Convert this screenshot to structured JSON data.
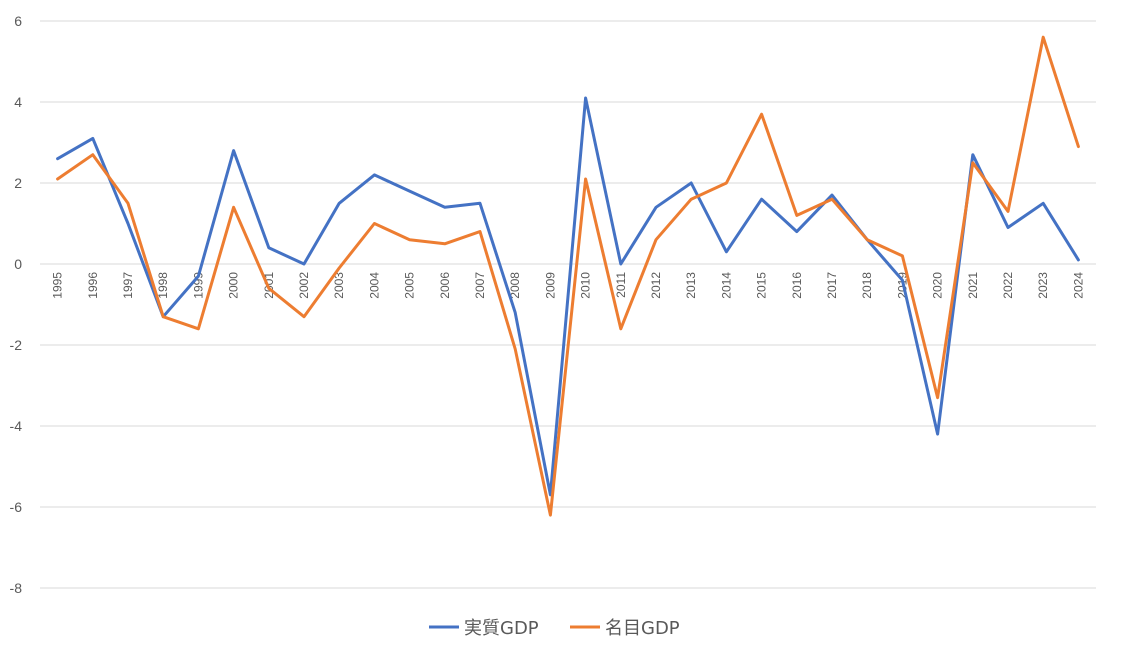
{
  "chart_data": {
    "type": "line",
    "title": "",
    "xlabel": "",
    "ylabel": "",
    "ylim": [
      -8,
      6
    ],
    "yticks": [
      "6",
      "4",
      "2",
      "0",
      "-2",
      "-4",
      "-6",
      "-8"
    ],
    "grid": true,
    "legend_position": "bottom",
    "categories": [
      "1995",
      "1996",
      "1997",
      "1998",
      "1999",
      "2000",
      "2001",
      "2002",
      "2003",
      "2004",
      "2005",
      "2006",
      "2007",
      "2008",
      "2009",
      "2010",
      "2011",
      "2012",
      "2013",
      "2014",
      "2015",
      "2016",
      "2017",
      "2018",
      "2019",
      "2020",
      "2021",
      "2022",
      "2023",
      "2024"
    ],
    "series": [
      {
        "name": "実質GDP",
        "color": "#4472C4",
        "values": [
          2.6,
          3.1,
          1.0,
          -1.3,
          -0.3,
          2.8,
          0.4,
          0.0,
          1.5,
          2.2,
          1.8,
          1.4,
          1.5,
          -1.2,
          -5.7,
          4.1,
          0.0,
          1.4,
          2.0,
          0.3,
          1.6,
          0.8,
          1.7,
          0.6,
          -0.4,
          -4.2,
          2.7,
          0.9,
          1.5,
          0.1
        ]
      },
      {
        "name": "名目GDP",
        "color": "#ED7D31",
        "values": [
          2.1,
          2.7,
          1.5,
          -1.3,
          -1.6,
          1.4,
          -0.6,
          -1.3,
          -0.1,
          1.0,
          0.6,
          0.5,
          0.8,
          -2.1,
          -6.2,
          2.1,
          -1.6,
          0.6,
          1.6,
          2.0,
          3.7,
          1.2,
          1.6,
          0.6,
          0.2,
          -3.3,
          2.5,
          1.3,
          5.6,
          2.9
        ]
      }
    ]
  }
}
